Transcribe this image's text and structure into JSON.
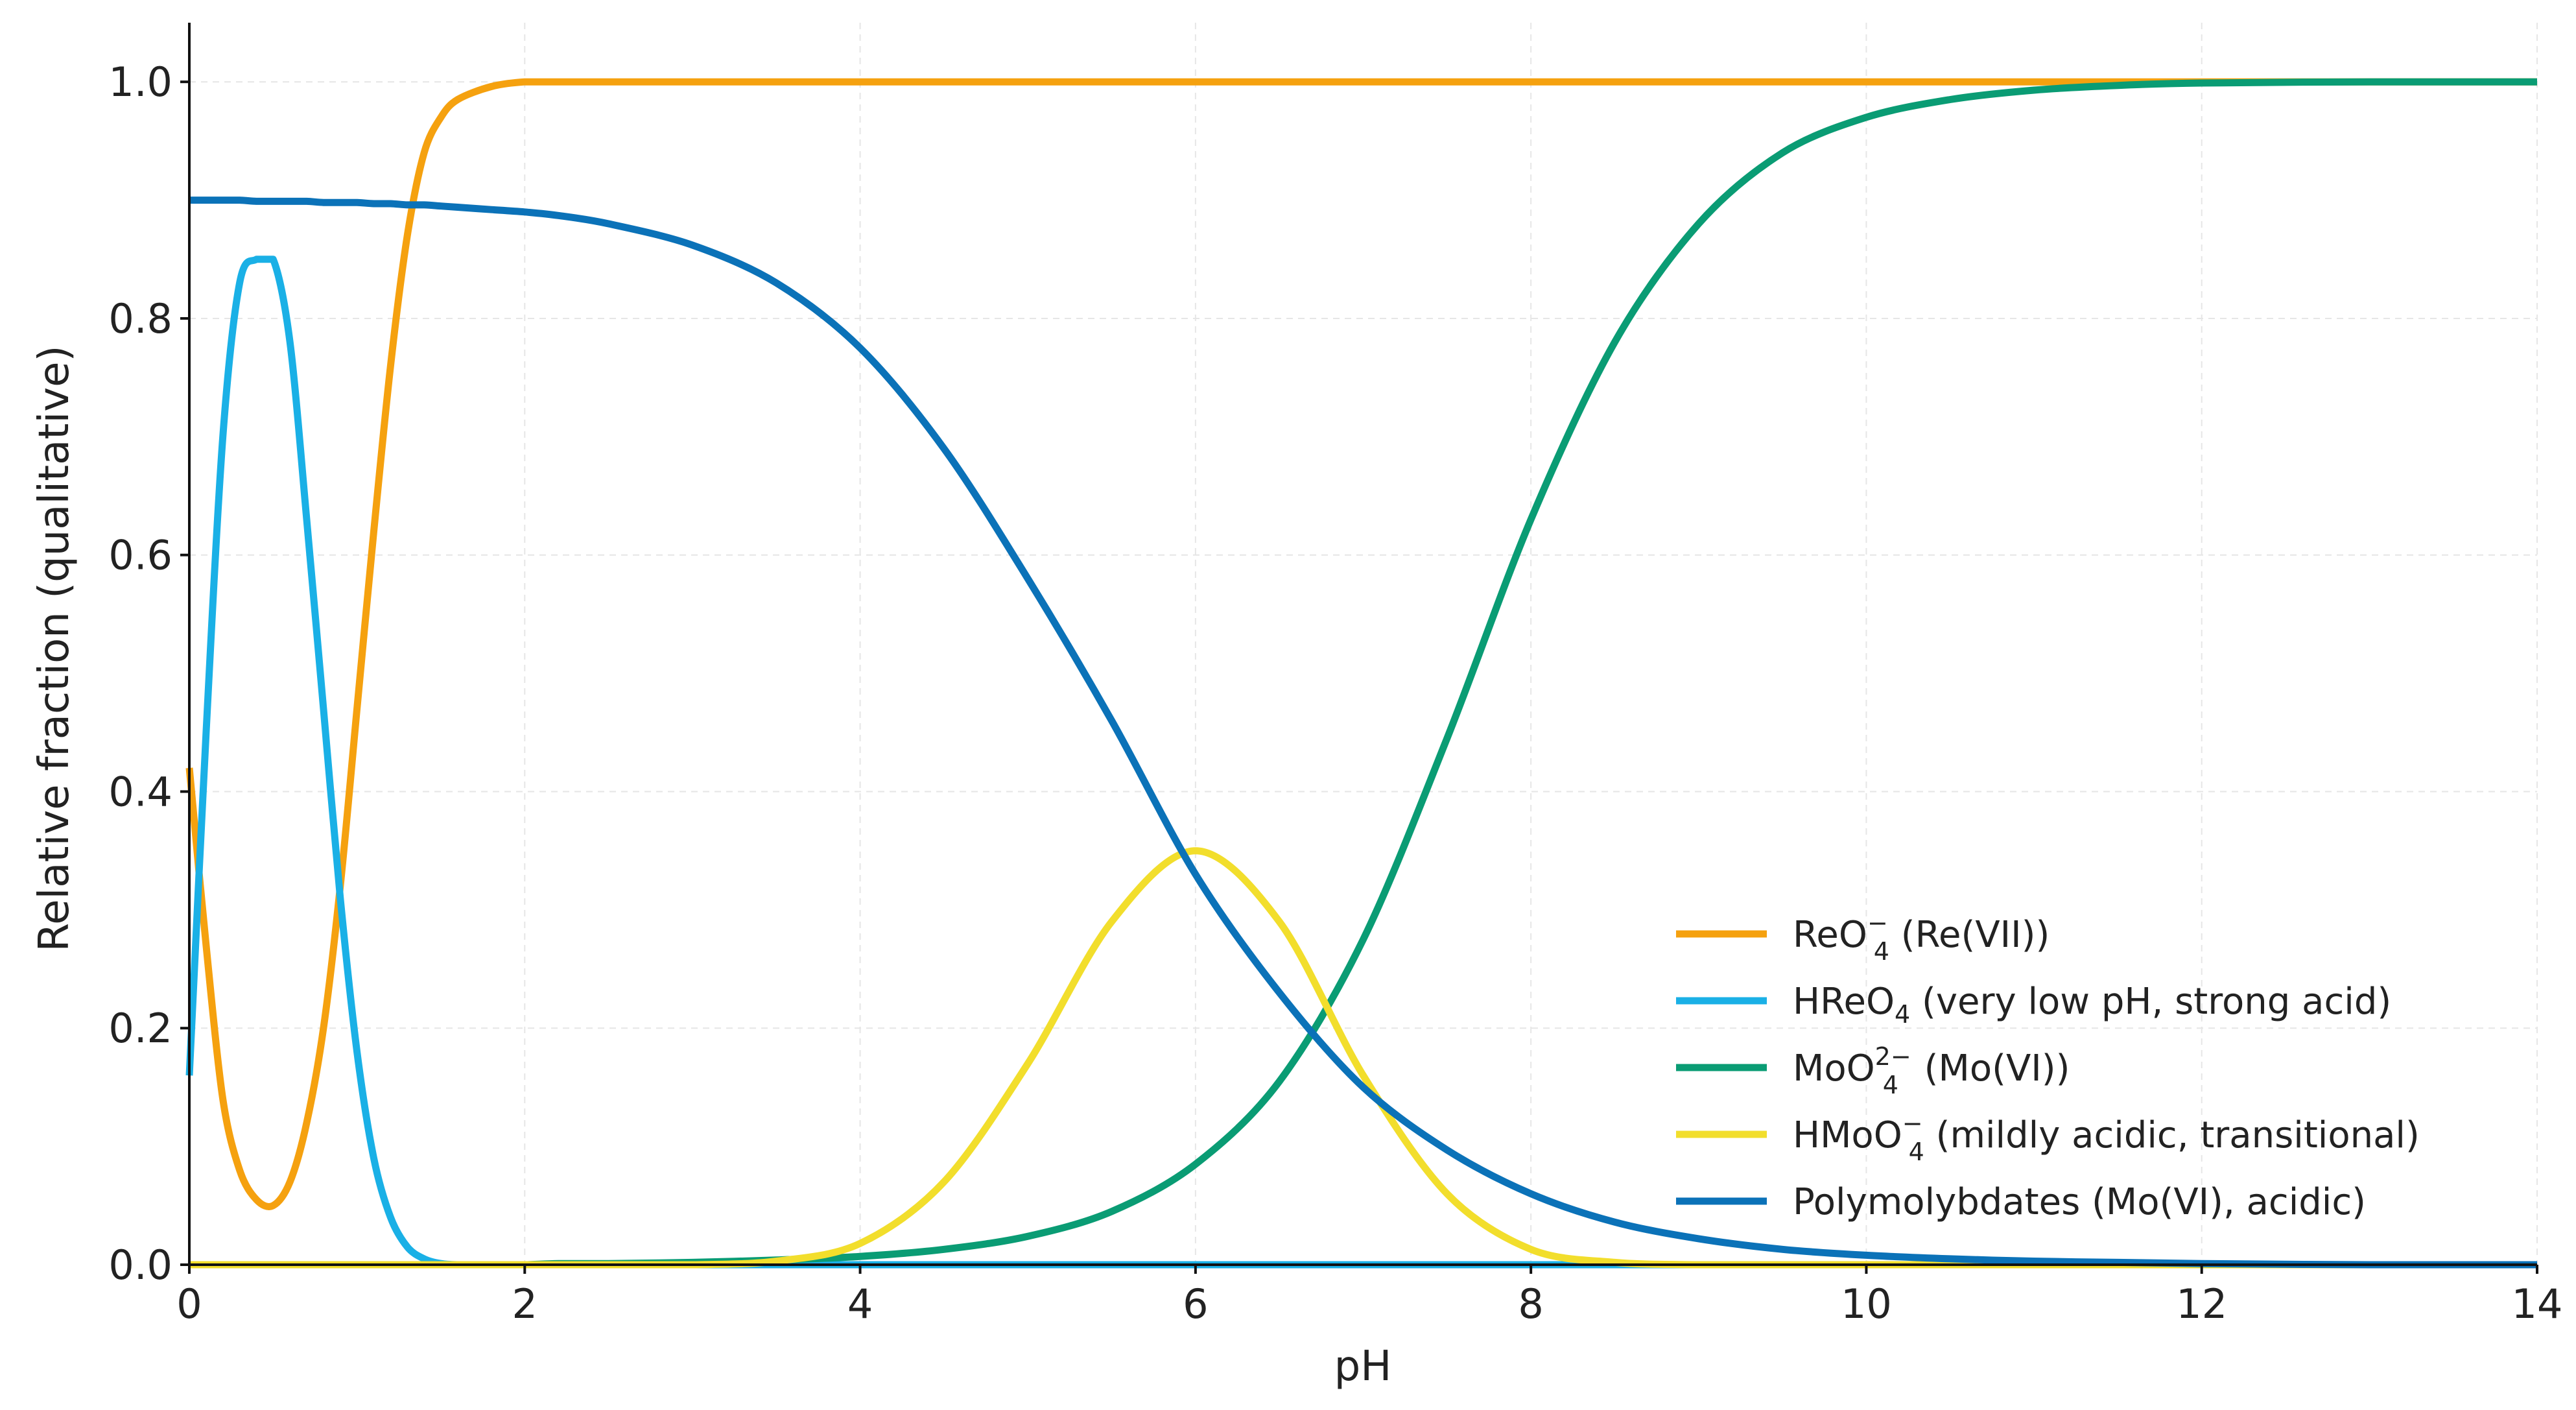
{
  "chart_data": {
    "type": "line",
    "title": "",
    "xlabel": "pH",
    "ylabel": "Relative fraction (qualitative)",
    "xlim": [
      0,
      14
    ],
    "ylim": [
      0,
      1.05
    ],
    "xticks": [
      0,
      2,
      4,
      6,
      8,
      10,
      12,
      14
    ],
    "xtick_labels": [
      "0",
      "2",
      "4",
      "6",
      "8",
      "10",
      "12",
      "14"
    ],
    "yticks": [
      0.0,
      0.2,
      0.4,
      0.6,
      0.8,
      1.0
    ],
    "ytick_labels": [
      "0.0",
      "0.2",
      "0.4",
      "0.6",
      "0.8",
      "1.0"
    ],
    "grid": true,
    "legend_position": "lower-right",
    "x": [
      0,
      0.1,
      0.2,
      0.3,
      0.4,
      0.5,
      0.6,
      0.7,
      0.8,
      0.9,
      1.0,
      1.1,
      1.2,
      1.3,
      1.4,
      1.5,
      1.6,
      1.8,
      2.0,
      2.2,
      2.5,
      3.0,
      3.5,
      4.0,
      4.5,
      5.0,
      5.5,
      6.0,
      6.5,
      7.0,
      7.5,
      8.0,
      8.5,
      9.0,
      9.5,
      10.0,
      10.5,
      11.0,
      11.5,
      12.0,
      13.0,
      14.0
    ],
    "series": [
      {
        "name": "ReO4− (Re(VII))",
        "legend_main": "ReO",
        "legend_sub": "4",
        "legend_sup": "−",
        "legend_rest": "  (Re(VII))",
        "color": "#F5A10F",
        "values": [
          0.42,
          0.27,
          0.14,
          0.08,
          0.055,
          0.05,
          0.07,
          0.12,
          0.2,
          0.32,
          0.47,
          0.62,
          0.76,
          0.87,
          0.94,
          0.97,
          0.985,
          0.996,
          1.0,
          1.0,
          1.0,
          1.0,
          1.0,
          1.0,
          1.0,
          1.0,
          1.0,
          1.0,
          1.0,
          1.0,
          1.0,
          1.0,
          1.0,
          1.0,
          1.0,
          1.0,
          1.0,
          1.0,
          1.0,
          1.0,
          1.0,
          1.0
        ]
      },
      {
        "name": "HReO4 (very low pH, strong acid)",
        "legend_main": "HReO",
        "legend_sub": "4",
        "legend_sup": "",
        "legend_rest": " (very low pH, strong acid)",
        "color": "#1AB0E6",
        "values": [
          0.16,
          0.45,
          0.7,
          0.83,
          0.85,
          0.85,
          0.78,
          0.63,
          0.47,
          0.31,
          0.18,
          0.09,
          0.04,
          0.015,
          0.005,
          0.001,
          0.0,
          0.0,
          0.0,
          0.0,
          0.0,
          0.0,
          0.0,
          0.0,
          0.0,
          0.0,
          0.0,
          0.0,
          0.0,
          0.0,
          0.0,
          0.0,
          0.0,
          0.0,
          0.0,
          0.0,
          0.0,
          0.0,
          0.0,
          0.0,
          0.0,
          0.0
        ]
      },
      {
        "name": "MoO42− (Mo(VI))",
        "legend_main": "MoO",
        "legend_sub": "4",
        "legend_sup": "2−",
        "legend_rest": "  (Mo(VI))",
        "color": "#0A9C74",
        "values": [
          0.0,
          0.0,
          0.0,
          0.0,
          0.0,
          0.0,
          0.0,
          0.0,
          0.0,
          0.0,
          0.0,
          0.0,
          0.0,
          0.0,
          0.0,
          0.0,
          0.0,
          0.0,
          0.0,
          0.001,
          0.001,
          0.002,
          0.004,
          0.007,
          0.013,
          0.024,
          0.045,
          0.085,
          0.155,
          0.275,
          0.445,
          0.63,
          0.78,
          0.88,
          0.94,
          0.97,
          0.985,
          0.993,
          0.997,
          0.999,
          1.0,
          1.0
        ]
      },
      {
        "name": "HMoO4− (mildly acidic, transitional)",
        "legend_main": "HMoO",
        "legend_sub": "4",
        "legend_sup": "−",
        "legend_rest": "  (mildly acidic, transitional)",
        "color": "#F2DE2C",
        "values": [
          0.0,
          0.0,
          0.0,
          0.0,
          0.0,
          0.0,
          0.0,
          0.0,
          0.0,
          0.0,
          0.0,
          0.0,
          0.0,
          0.0,
          0.0,
          0.0,
          0.0,
          0.0,
          0.0,
          0.0,
          0.0,
          0.0,
          0.003,
          0.018,
          0.07,
          0.17,
          0.29,
          0.35,
          0.29,
          0.16,
          0.06,
          0.013,
          0.002,
          0.0,
          0.0,
          0.0,
          0.0,
          0.0,
          0.0,
          0.0,
          0.0,
          0.0
        ]
      },
      {
        "name": "Polymolybdates (Mo(VI), acidic)",
        "legend_main": "Polymolybdates (Mo(VI), acidic)",
        "legend_sub": "",
        "legend_sup": "",
        "legend_rest": "",
        "color": "#0B72B8",
        "values": [
          0.9,
          0.9,
          0.9,
          0.9,
          0.899,
          0.899,
          0.899,
          0.899,
          0.898,
          0.898,
          0.898,
          0.897,
          0.897,
          0.896,
          0.896,
          0.895,
          0.894,
          0.892,
          0.89,
          0.887,
          0.88,
          0.862,
          0.83,
          0.775,
          0.69,
          0.58,
          0.46,
          0.33,
          0.23,
          0.15,
          0.097,
          0.06,
          0.036,
          0.022,
          0.013,
          0.008,
          0.005,
          0.003,
          0.002,
          0.001,
          0.0,
          0.0
        ]
      }
    ]
  }
}
